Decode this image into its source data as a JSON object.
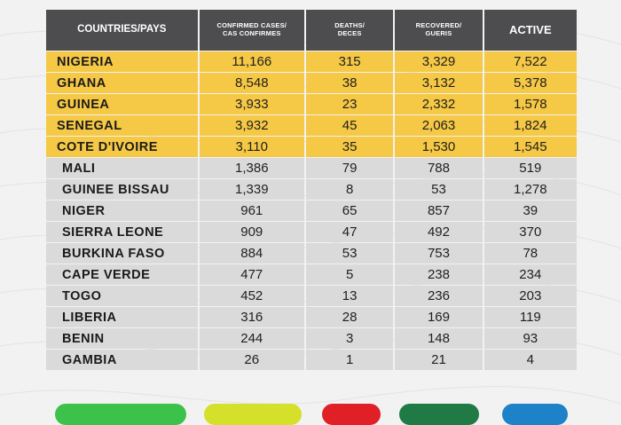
{
  "table": {
    "headers": {
      "country": "COUNTRIES/PAYS",
      "confirmed_line1": "CONFIRMED CASES/",
      "confirmed_line2": "CAS CONFIRMES",
      "deaths_line1": "DEATHS/",
      "deaths_line2": "DECES",
      "recovered_line1": "RECOVERED/",
      "recovered_line2": "GUERIS",
      "active": "ACTIVE"
    },
    "rows": [
      {
        "country": "NIGERIA",
        "confirmed": "11,166",
        "deaths": "315",
        "recovered": "3,329",
        "active": "7,522"
      },
      {
        "country": "GHANA",
        "confirmed": "8,548",
        "deaths": "38",
        "recovered": "3,132",
        "active": "5,378"
      },
      {
        "country": "GUINEA",
        "confirmed": "3,933",
        "deaths": "23",
        "recovered": "2,332",
        "active": "1,578"
      },
      {
        "country": "SENEGAL",
        "confirmed": "3,932",
        "deaths": "45",
        "recovered": "2,063",
        "active": "1,824"
      },
      {
        "country": "COTE D'IVOIRE",
        "confirmed": "3,110",
        "deaths": "35",
        "recovered": "1,530",
        "active": "1,545"
      },
      {
        "country": "MALI",
        "confirmed": "1,386",
        "deaths": "79",
        "recovered": "788",
        "active": "519"
      },
      {
        "country": "GUINEE BISSAU",
        "confirmed": "1,339",
        "deaths": "8",
        "recovered": "53",
        "active": "1,278"
      },
      {
        "country": "NIGER",
        "confirmed": "961",
        "deaths": "65",
        "recovered": "857",
        "active": "39"
      },
      {
        "country": "SIERRA LEONE",
        "confirmed": "909",
        "deaths": "47",
        "recovered": "492",
        "active": "370"
      },
      {
        "country": "BURKINA FASO",
        "confirmed": "884",
        "deaths": "53",
        "recovered": "753",
        "active": "78"
      },
      {
        "country": "CAPE VERDE",
        "confirmed": "477",
        "deaths": "5",
        "recovered": "238",
        "active": "234"
      },
      {
        "country": "TOGO",
        "confirmed": "452",
        "deaths": "13",
        "recovered": "236",
        "active": "203"
      },
      {
        "country": "LIBERIA",
        "confirmed": "316",
        "deaths": "28",
        "recovered": "169",
        "active": "119"
      },
      {
        "country": "BENIN",
        "confirmed": "244",
        "deaths": "3",
        "recovered": "148",
        "active": "93"
      },
      {
        "country": "GAMBIA",
        "confirmed": "26",
        "deaths": "1",
        "recovered": "21",
        "active": "4"
      }
    ]
  },
  "colors": {
    "highlight_row": "#f5c845",
    "normal_row": "#dadada",
    "header": "#4d4d4f",
    "total_confirmed": "#3cc24a",
    "total_deaths_left": "#d4e02a",
    "total_deaths": "#e01f26",
    "total_recovered": "#1f7a45",
    "total_active": "#1e82c8"
  }
}
